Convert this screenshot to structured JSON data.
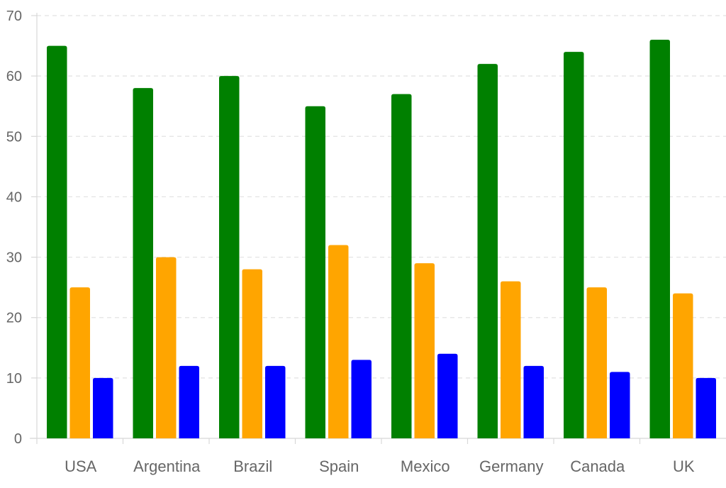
{
  "chart_data": {
    "type": "bar",
    "categories": [
      "USA",
      "Argentina",
      "Brazil",
      "Spain",
      "Mexico",
      "Germany",
      "Canada",
      "UK"
    ],
    "series": [
      {
        "color": "#008000",
        "values": [
          65,
          58,
          60,
          55,
          57,
          62,
          64,
          66
        ]
      },
      {
        "color": "#FFA500",
        "values": [
          25,
          30,
          28,
          32,
          29,
          26,
          25,
          24
        ]
      },
      {
        "color": "#0000FF",
        "values": [
          10,
          12,
          12,
          13,
          14,
          12,
          11,
          10
        ]
      }
    ],
    "yticks": [
      "0",
      "10",
      "20",
      "30",
      "40",
      "50",
      "60",
      "70"
    ],
    "ylim": [
      0,
      70
    ],
    "grid": true,
    "grid_style": "dashed-horizontal",
    "legend": "none"
  }
}
